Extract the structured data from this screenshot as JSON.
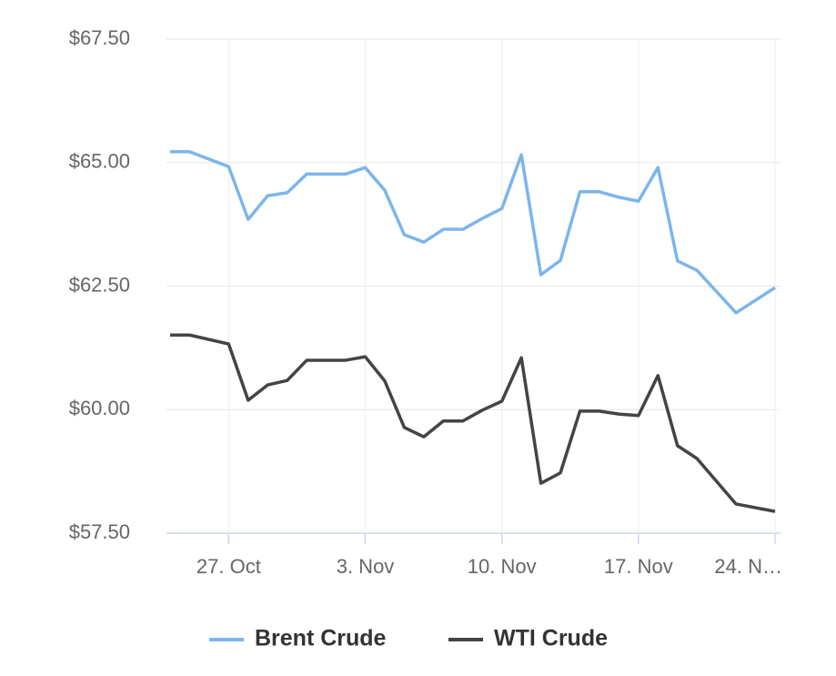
{
  "chart_data": {
    "type": "line",
    "x": [
      "24. Oct",
      "25. Oct",
      "27. Oct",
      "28. Oct",
      "29. Oct",
      "30. Oct",
      "31. Oct",
      "1. Nov",
      "2. Nov",
      "3. Nov",
      "4. Nov",
      "5. Nov",
      "6. Nov",
      "7. Nov",
      "8. Nov",
      "9. Nov",
      "10. Nov",
      "11. Nov",
      "12. Nov",
      "13. Nov",
      "14. Nov",
      "15. Nov",
      "16. Nov",
      "17. Nov",
      "18. Nov",
      "19. Nov",
      "20. Nov",
      "22. Nov",
      "24. Nov"
    ],
    "series": [
      {
        "name": "Brent Crude",
        "color": "#7cb5ec",
        "values": [
          65.22,
          65.22,
          64.92,
          63.85,
          64.33,
          64.39,
          64.77,
          64.77,
          64.77,
          64.9,
          64.44,
          63.54,
          63.39,
          63.65,
          63.65,
          63.87,
          64.07,
          65.16,
          62.73,
          63.02,
          64.41,
          64.41,
          64.3,
          64.22,
          64.9,
          63.01,
          62.82,
          61.96,
          62.47
        ]
      },
      {
        "name": "WTI Crude",
        "color": "#434348",
        "values": [
          61.51,
          61.51,
          61.33,
          60.19,
          60.5,
          60.59,
          61.0,
          61.0,
          61.0,
          61.07,
          60.58,
          59.64,
          59.45,
          59.77,
          59.77,
          59.99,
          60.17,
          61.05,
          58.51,
          58.72,
          59.97,
          59.97,
          59.91,
          59.88,
          60.69,
          59.27,
          59.01,
          58.09,
          57.94
        ]
      }
    ],
    "xlim": [
      "24. Oct",
      "24. Nov"
    ],
    "xticks": [
      "27. Oct",
      "3. Nov",
      "10. Nov",
      "17. Nov",
      {
        "value": "24. Nov",
        "label": "24. N…"
      }
    ],
    "ylim": [
      57.5,
      67.5
    ],
    "yticks": [
      {
        "value": 57.5,
        "label": "$57.50"
      },
      {
        "value": 60,
        "label": "$60.00"
      },
      {
        "value": 62.5,
        "label": "$62.50"
      },
      {
        "value": 65,
        "label": "$65.00"
      },
      {
        "value": 67.5,
        "label": "$67.50"
      }
    ],
    "grid": true,
    "legend": "bottom"
  }
}
